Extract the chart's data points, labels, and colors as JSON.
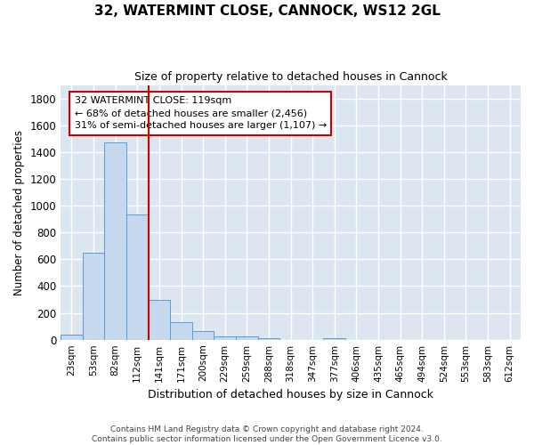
{
  "title_line1": "32, WATERMINT CLOSE, CANNOCK, WS12 2GL",
  "title_line2": "Size of property relative to detached houses in Cannock",
  "xlabel": "Distribution of detached houses by size in Cannock",
  "ylabel": "Number of detached properties",
  "footnote": "Contains HM Land Registry data © Crown copyright and database right 2024.\nContains public sector information licensed under the Open Government Licence v3.0.",
  "categories": [
    "23sqm",
    "53sqm",
    "82sqm",
    "112sqm",
    "141sqm",
    "171sqm",
    "200sqm",
    "229sqm",
    "259sqm",
    "288sqm",
    "318sqm",
    "347sqm",
    "377sqm",
    "406sqm",
    "435sqm",
    "465sqm",
    "494sqm",
    "524sqm",
    "553sqm",
    "583sqm",
    "612sqm"
  ],
  "values": [
    35,
    650,
    1470,
    935,
    295,
    130,
    65,
    25,
    25,
    12,
    0,
    0,
    12,
    0,
    0,
    0,
    0,
    0,
    0,
    0,
    0
  ],
  "bar_color": "#c5d8ed",
  "bar_edge_color": "#5b9bd5",
  "vline_color": "#cc0000",
  "annotation_text": "32 WATERMINT CLOSE: 119sqm\n← 68% of detached houses are smaller (2,456)\n31% of semi-detached houses are larger (1,107) →",
  "annotation_box_color": "#ffffff",
  "annotation_box_edge": "#cc0000",
  "ylim": [
    0,
    1900
  ],
  "yticks": [
    0,
    200,
    400,
    600,
    800,
    1000,
    1200,
    1400,
    1600,
    1800
  ],
  "background_color": "#dce6f1",
  "plot_bg_color": "#dce6f1",
  "grid_color": "#ffffff",
  "vline_position": 3.5,
  "fig_bg_color": "#ffffff"
}
